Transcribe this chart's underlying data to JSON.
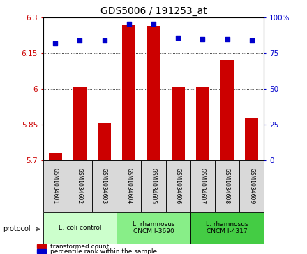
{
  "title": "GDS5006 / 191253_at",
  "samples": [
    "GSM1034601",
    "GSM1034602",
    "GSM1034603",
    "GSM1034604",
    "GSM1034605",
    "GSM1034606",
    "GSM1034607",
    "GSM1034608",
    "GSM1034609"
  ],
  "bar_values": [
    5.73,
    6.01,
    5.855,
    6.27,
    6.265,
    6.005,
    6.005,
    6.12,
    5.875
  ],
  "scatter_values": [
    82,
    84,
    84,
    96,
    96,
    86,
    85,
    85,
    84
  ],
  "ylim_left": [
    5.7,
    6.3
  ],
  "ylim_right": [
    0,
    100
  ],
  "yticks_left": [
    5.7,
    5.85,
    6.0,
    6.15,
    6.3
  ],
  "yticks_right": [
    0,
    25,
    50,
    75,
    100
  ],
  "ytick_labels_left": [
    "5.7",
    "5.85",
    "6",
    "6.15",
    "6.3"
  ],
  "ytick_labels_right": [
    "0",
    "25",
    "50",
    "75",
    "100%"
  ],
  "bar_color": "#cc0000",
  "scatter_color": "#0000cc",
  "bar_bottom": 5.7,
  "group_colors": [
    "#ccffcc",
    "#88ee88",
    "#44cc44"
  ],
  "group_labels": [
    "E. coli control",
    "L. rhamnosus\nCNCM I-3690",
    "L. rhamnosus\nCNCM I-4317"
  ],
  "group_ranges": [
    [
      0,
      3
    ],
    [
      3,
      6
    ],
    [
      6,
      9
    ]
  ],
  "protocol_label": "protocol",
  "legend_bar_label": "transformed count",
  "legend_scatter_label": "percentile rank within the sample",
  "sample_box_color": "#d9d9d9",
  "tick_color_left": "#cc0000",
  "tick_color_right": "#0000cc"
}
